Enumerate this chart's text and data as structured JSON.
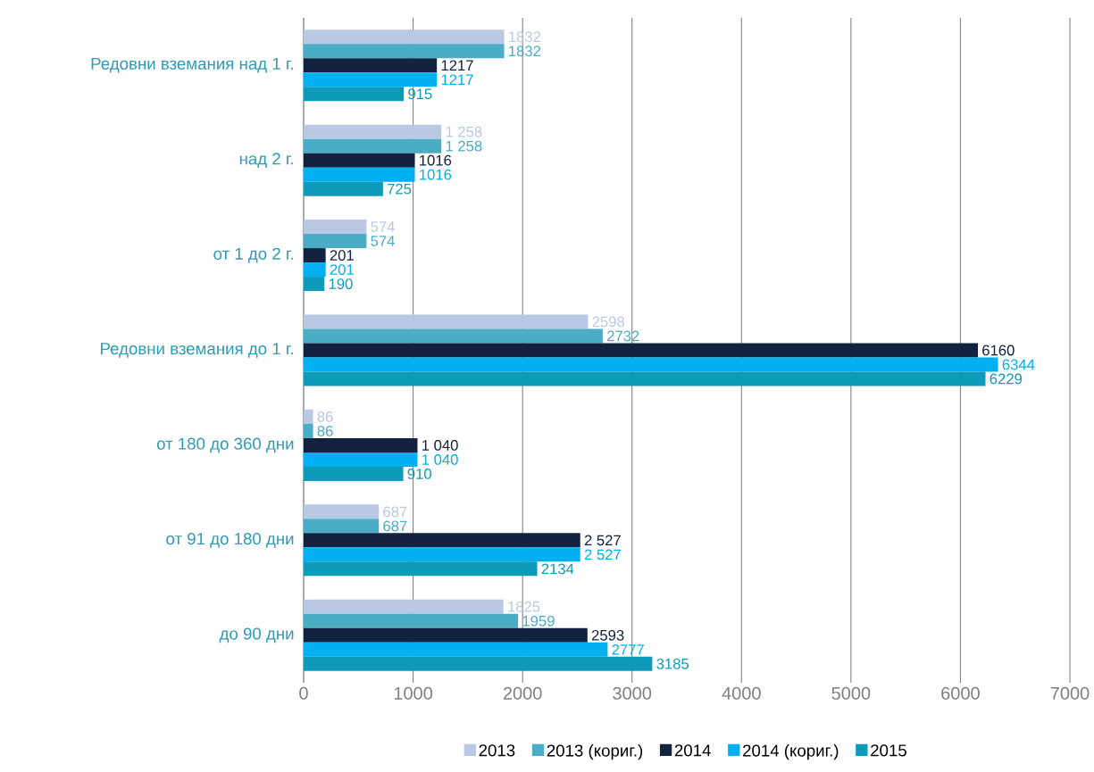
{
  "chart_data": {
    "type": "bar",
    "orientation": "horizontal",
    "categories": [
      "Редовни вземания над 1 г.",
      "над 2 г.",
      "от 1 до 2 г.",
      "Редовни вземания до 1 г.",
      "от 180 до 360 дни",
      "от 91 до 180 дни",
      "до 90 дни"
    ],
    "series": [
      {
        "name": "2013",
        "color": "#b9c9e4",
        "values": [
          1832,
          1258,
          574,
          2598,
          86,
          687,
          1825
        ],
        "value_labels": [
          "1832",
          "1 258",
          "574",
          "2598",
          "86",
          "687",
          "1825"
        ]
      },
      {
        "name": "2013 (кориг.)",
        "color": "#4bacc6",
        "values": [
          1832,
          1258,
          574,
          2732,
          86,
          687,
          1959
        ],
        "value_labels": [
          "1832",
          "1 258",
          "574",
          "2732",
          "86",
          "687",
          "1959"
        ]
      },
      {
        "name": "2014",
        "color": "#13233f",
        "values": [
          1217,
          1016,
          201,
          6160,
          1040,
          2527,
          2593
        ],
        "value_labels": [
          "1217",
          "1016",
          "201",
          "6160",
          "1 040",
          "2 527",
          "2593"
        ]
      },
      {
        "name": "2014 (кориг.)",
        "color": "#00b0f0",
        "values": [
          1217,
          1016,
          201,
          6344,
          1040,
          2527,
          2777
        ],
        "value_labels": [
          "1217",
          "1016",
          "201",
          "6344",
          "1 040",
          "2 527",
          "2777"
        ]
      },
      {
        "name": "2015",
        "color": "#0e9ab9",
        "values": [
          915,
          725,
          190,
          6229,
          910,
          2134,
          3185
        ],
        "value_labels": [
          "915",
          "725",
          "190",
          "6229",
          "910",
          "2134",
          "3185"
        ]
      }
    ],
    "xlim": [
      0,
      7000
    ],
    "xticks": [
      0,
      1000,
      2000,
      3000,
      4000,
      5000,
      6000,
      7000
    ],
    "grid": "x",
    "legend": "bottom"
  }
}
